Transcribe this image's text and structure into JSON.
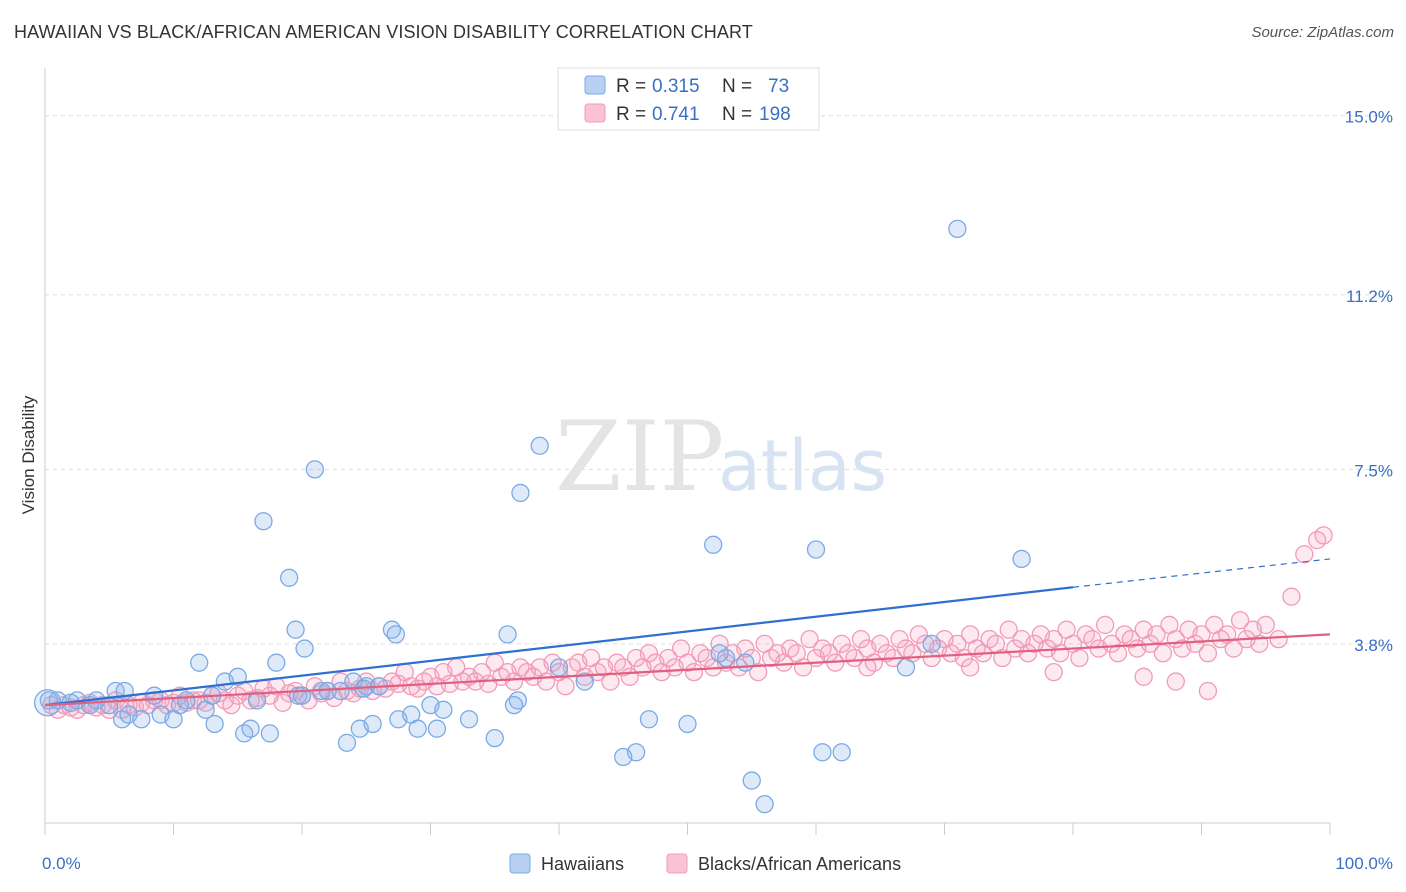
{
  "header": {
    "title": "HAWAIIAN VS BLACK/AFRICAN AMERICAN VISION DISABILITY CORRELATION CHART",
    "source": "Source: ZipAtlas.com"
  },
  "watermark": {
    "zip": "ZIP",
    "atlas": "atlas"
  },
  "legend": {
    "rows": [
      {
        "r_label": "R = ",
        "r_value": "0.315",
        "n_label": "N = ",
        "n_value": "73"
      },
      {
        "r_label": "R = ",
        "r_value": "0.741",
        "n_label": "N = ",
        "n_value": "198"
      }
    ]
  },
  "bottom_legend": [
    "Hawaiians",
    "Blacks/African Americans"
  ],
  "chart_data": {
    "type": "scatter",
    "title": "HAWAIIAN VS BLACK/AFRICAN AMERICAN VISION DISABILITY CORRELATION CHART",
    "ylabel": "Vision Disability",
    "xlim": [
      0,
      100
    ],
    "ylim": [
      0.0,
      15.0
    ],
    "x_tick_labels": [
      "0.0%",
      "100.0%"
    ],
    "y_ticks": [
      3.8,
      7.5,
      11.2,
      15.0
    ],
    "y_tick_labels": [
      "3.8%",
      "7.5%",
      "11.2%",
      "15.0%"
    ],
    "grid": true,
    "legend_position": "top-center",
    "series": [
      {
        "name": "Hawaiians",
        "color": "#7aaae6",
        "trend_color": "#2f6fcf",
        "trend": {
          "x0": 0,
          "y0": 2.5,
          "x1": 80,
          "y1": 5.0,
          "dashed_to_x": 100,
          "dashed_to_y": 5.6
        },
        "points": [
          [
            0.3,
            2.6
          ],
          [
            1,
            2.6
          ],
          [
            2,
            2.55
          ],
          [
            2.5,
            2.6
          ],
          [
            3.5,
            2.5
          ],
          [
            4,
            2.6
          ],
          [
            5,
            2.5
          ],
          [
            5.5,
            2.8
          ],
          [
            6,
            2.2
          ],
          [
            6.2,
            2.8
          ],
          [
            6.5,
            2.3
          ],
          [
            7.5,
            2.2
          ],
          [
            8.5,
            2.7
          ],
          [
            9,
            2.3
          ],
          [
            10,
            2.2
          ],
          [
            10.5,
            2.5
          ],
          [
            11,
            2.6
          ],
          [
            12,
            3.4
          ],
          [
            12.5,
            2.4
          ],
          [
            13,
            2.7
          ],
          [
            13.2,
            2.1
          ],
          [
            14,
            3.0
          ],
          [
            15,
            3.1
          ],
          [
            15.5,
            1.9
          ],
          [
            16,
            2.0
          ],
          [
            16.5,
            2.6
          ],
          [
            17,
            6.4
          ],
          [
            17.5,
            1.9
          ],
          [
            18,
            3.4
          ],
          [
            19,
            5.2
          ],
          [
            19.5,
            4.1
          ],
          [
            19.7,
            2.7
          ],
          [
            20,
            2.7
          ],
          [
            20.2,
            3.7
          ],
          [
            21,
            7.5
          ],
          [
            21.5,
            2.8
          ],
          [
            22,
            2.8
          ],
          [
            23,
            2.8
          ],
          [
            23.5,
            1.7
          ],
          [
            24,
            3.0
          ],
          [
            24.5,
            2.0
          ],
          [
            25,
            2.9
          ],
          [
            24.8,
            2.85
          ],
          [
            25.5,
            2.1
          ],
          [
            26,
            2.9
          ],
          [
            27,
            4.1
          ],
          [
            27.5,
            2.2
          ],
          [
            27.3,
            4.0
          ],
          [
            28.5,
            2.3
          ],
          [
            29,
            2.0
          ],
          [
            30.5,
            2.0
          ],
          [
            30,
            2.5
          ],
          [
            31,
            2.4
          ],
          [
            33,
            2.2
          ],
          [
            36,
            4.0
          ],
          [
            36.8,
            2.6
          ],
          [
            36.5,
            2.5
          ],
          [
            37,
            7.0
          ],
          [
            38.5,
            8.0
          ],
          [
            40,
            3.3
          ],
          [
            42,
            3.0
          ],
          [
            46,
            1.5
          ],
          [
            47,
            2.2
          ],
          [
            50,
            2.1
          ],
          [
            52,
            5.9
          ],
          [
            54.5,
            3.4
          ],
          [
            53,
            3.5
          ],
          [
            52.5,
            3.6
          ],
          [
            55,
            0.9
          ],
          [
            56,
            0.4
          ],
          [
            60,
            5.8
          ],
          [
            60.5,
            1.5
          ],
          [
            62,
            1.5
          ],
          [
            67,
            3.3
          ],
          [
            69,
            3.8
          ],
          [
            71,
            12.6
          ],
          [
            76,
            5.6
          ],
          [
            45,
            1.4
          ],
          [
            35,
            1.8
          ]
        ]
      },
      {
        "name": "Blacks/African Americans",
        "color": "#f29bb8",
        "trend_color": "#e0607f",
        "trend": {
          "x0": 0,
          "y0": 2.5,
          "x1": 100,
          "y1": 4.0
        },
        "points": [
          [
            0.5,
            2.5
          ],
          [
            1,
            2.4
          ],
          [
            1.5,
            2.5
          ],
          [
            2,
            2.45
          ],
          [
            2.5,
            2.4
          ],
          [
            3,
            2.5
          ],
          [
            3.5,
            2.55
          ],
          [
            4,
            2.45
          ],
          [
            4.5,
            2.5
          ],
          [
            5,
            2.4
          ],
          [
            5.5,
            2.6
          ],
          [
            6,
            2.4
          ],
          [
            6.5,
            2.5
          ],
          [
            7,
            2.45
          ],
          [
            7.5,
            2.55
          ],
          [
            8,
            2.5
          ],
          [
            8.5,
            2.6
          ],
          [
            9,
            2.6
          ],
          [
            9.5,
            2.5
          ],
          [
            10,
            2.55
          ],
          [
            10.5,
            2.7
          ],
          [
            11,
            2.55
          ],
          [
            11.5,
            2.6
          ],
          [
            12,
            2.6
          ],
          [
            12.5,
            2.55
          ],
          [
            13,
            2.7
          ],
          [
            13.5,
            2.75
          ],
          [
            14,
            2.6
          ],
          [
            14.5,
            2.5
          ],
          [
            15,
            2.7
          ],
          [
            15.5,
            2.8
          ],
          [
            16,
            2.6
          ],
          [
            16.5,
            2.65
          ],
          [
            17,
            2.85
          ],
          [
            17.5,
            2.7
          ],
          [
            18,
            2.9
          ],
          [
            18.5,
            2.55
          ],
          [
            19,
            2.75
          ],
          [
            19.5,
            2.8
          ],
          [
            20,
            2.7
          ],
          [
            20.5,
            2.6
          ],
          [
            21,
            2.9
          ],
          [
            21.5,
            2.75
          ],
          [
            22,
            2.8
          ],
          [
            22.5,
            2.65
          ],
          [
            23,
            3.0
          ],
          [
            23.5,
            2.8
          ],
          [
            24,
            2.75
          ],
          [
            24.5,
            2.85
          ],
          [
            25,
            3.0
          ],
          [
            25.5,
            2.8
          ],
          [
            26,
            2.9
          ],
          [
            26.5,
            2.85
          ],
          [
            27,
            3.0
          ],
          [
            27.5,
            2.95
          ],
          [
            28,
            3.2
          ],
          [
            28.5,
            2.9
          ],
          [
            29,
            2.85
          ],
          [
            29.5,
            3.0
          ],
          [
            30,
            3.1
          ],
          [
            30.5,
            2.9
          ],
          [
            31,
            3.2
          ],
          [
            31.5,
            2.95
          ],
          [
            32,
            3.3
          ],
          [
            32.5,
            3.0
          ],
          [
            33,
            3.1
          ],
          [
            33.5,
            3.0
          ],
          [
            34,
            3.2
          ],
          [
            34.5,
            2.95
          ],
          [
            35,
            3.4
          ],
          [
            35.5,
            3.1
          ],
          [
            36,
            3.2
          ],
          [
            36.5,
            3.0
          ],
          [
            37,
            3.3
          ],
          [
            37.5,
            3.2
          ],
          [
            38,
            3.1
          ],
          [
            38.5,
            3.3
          ],
          [
            39,
            3.0
          ],
          [
            39.5,
            3.4
          ],
          [
            40,
            3.2
          ],
          [
            40.5,
            2.9
          ],
          [
            41,
            3.3
          ],
          [
            41.5,
            3.4
          ],
          [
            42,
            3.1
          ],
          [
            42.5,
            3.5
          ],
          [
            43,
            3.2
          ],
          [
            43.5,
            3.3
          ],
          [
            44,
            3.0
          ],
          [
            44.5,
            3.4
          ],
          [
            45,
            3.3
          ],
          [
            45.5,
            3.1
          ],
          [
            46,
            3.5
          ],
          [
            46.5,
            3.3
          ],
          [
            47,
            3.6
          ],
          [
            47.5,
            3.4
          ],
          [
            48,
            3.2
          ],
          [
            48.5,
            3.5
          ],
          [
            49,
            3.3
          ],
          [
            49.5,
            3.7
          ],
          [
            50,
            3.4
          ],
          [
            50.5,
            3.2
          ],
          [
            51,
            3.6
          ],
          [
            51.5,
            3.5
          ],
          [
            52,
            3.3
          ],
          [
            52.5,
            3.8
          ],
          [
            53,
            3.4
          ],
          [
            53.5,
            3.6
          ],
          [
            54,
            3.3
          ],
          [
            54.5,
            3.7
          ],
          [
            55,
            3.5
          ],
          [
            55.5,
            3.2
          ],
          [
            56,
            3.8
          ],
          [
            56.5,
            3.5
          ],
          [
            57,
            3.6
          ],
          [
            57.5,
            3.4
          ],
          [
            58,
            3.7
          ],
          [
            58.5,
            3.6
          ],
          [
            59,
            3.3
          ],
          [
            59.5,
            3.9
          ],
          [
            60,
            3.5
          ],
          [
            60.5,
            3.7
          ],
          [
            61,
            3.6
          ],
          [
            61.5,
            3.4
          ],
          [
            62,
            3.8
          ],
          [
            62.5,
            3.6
          ],
          [
            63,
            3.5
          ],
          [
            63.5,
            3.9
          ],
          [
            64,
            3.7
          ],
          [
            64.5,
            3.4
          ],
          [
            65,
            3.8
          ],
          [
            65.5,
            3.6
          ],
          [
            66,
            3.5
          ],
          [
            66.5,
            3.9
          ],
          [
            67,
            3.7
          ],
          [
            67.5,
            3.6
          ],
          [
            68,
            4.0
          ],
          [
            68.5,
            3.8
          ],
          [
            69,
            3.5
          ],
          [
            69.5,
            3.7
          ],
          [
            70,
            3.9
          ],
          [
            70.5,
            3.6
          ],
          [
            71,
            3.8
          ],
          [
            71.5,
            3.5
          ],
          [
            72,
            4.0
          ],
          [
            72.5,
            3.7
          ],
          [
            73,
            3.6
          ],
          [
            73.5,
            3.9
          ],
          [
            74,
            3.8
          ],
          [
            74.5,
            3.5
          ],
          [
            75,
            4.1
          ],
          [
            75.5,
            3.7
          ],
          [
            76,
            3.9
          ],
          [
            76.5,
            3.6
          ],
          [
            77,
            3.8
          ],
          [
            77.5,
            4.0
          ],
          [
            78,
            3.7
          ],
          [
            78.5,
            3.9
          ],
          [
            79,
            3.6
          ],
          [
            79.5,
            4.1
          ],
          [
            80,
            3.8
          ],
          [
            80.5,
            3.5
          ],
          [
            81,
            4.0
          ],
          [
            81.5,
            3.9
          ],
          [
            82,
            3.7
          ],
          [
            82.5,
            4.2
          ],
          [
            83,
            3.8
          ],
          [
            83.5,
            3.6
          ],
          [
            84,
            4.0
          ],
          [
            84.5,
            3.9
          ],
          [
            85,
            3.7
          ],
          [
            85.5,
            4.1
          ],
          [
            86,
            3.8
          ],
          [
            86.5,
            4.0
          ],
          [
            87,
            3.6
          ],
          [
            87.5,
            4.2
          ],
          [
            88,
            3.9
          ],
          [
            88.5,
            3.7
          ],
          [
            89,
            4.1
          ],
          [
            89.5,
            3.8
          ],
          [
            90,
            4.0
          ],
          [
            90.5,
            3.6
          ],
          [
            91,
            4.2
          ],
          [
            91.5,
            3.9
          ],
          [
            92,
            4.0
          ],
          [
            92.5,
            3.7
          ],
          [
            93,
            4.3
          ],
          [
            93.5,
            3.9
          ],
          [
            94,
            4.1
          ],
          [
            94.5,
            3.8
          ],
          [
            95,
            4.2
          ],
          [
            96,
            3.9
          ],
          [
            97,
            4.8
          ],
          [
            98,
            5.7
          ],
          [
            99,
            6.0
          ],
          [
            99.5,
            6.1
          ],
          [
            85.5,
            3.1
          ],
          [
            88,
            3.0
          ],
          [
            90.5,
            2.8
          ],
          [
            78.5,
            3.2
          ],
          [
            72,
            3.3
          ],
          [
            64,
            3.3
          ]
        ]
      }
    ]
  }
}
